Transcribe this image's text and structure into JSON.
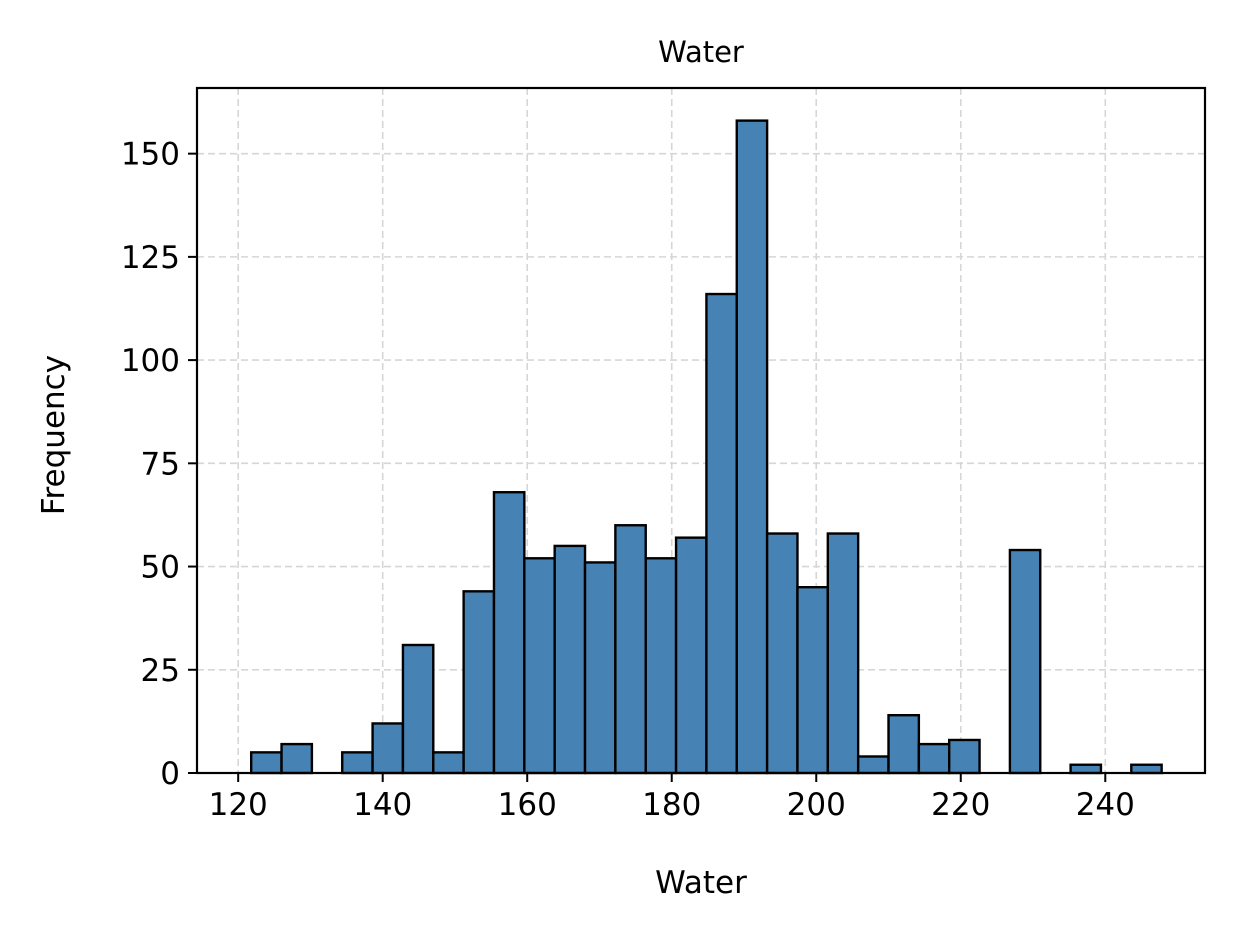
{
  "chart_data": {
    "type": "bar",
    "title": "Water",
    "xlabel": "Water",
    "ylabel": "Frequency",
    "xlim": [
      114.3,
      253.8
    ],
    "ylim": [
      0,
      165.9
    ],
    "xticks": [
      120,
      140,
      160,
      180,
      200,
      220,
      240
    ],
    "yticks": [
      0,
      25,
      50,
      75,
      100,
      125,
      150
    ],
    "grid": true,
    "bar_color": "#4682b4",
    "edge_color": "#000000",
    "bins": [
      {
        "x0": 121.8,
        "x1": 126.0,
        "count": 5
      },
      {
        "x0": 126.0,
        "x1": 130.2,
        "count": 7
      },
      {
        "x0": 130.2,
        "x1": 134.4,
        "count": 0
      },
      {
        "x0": 134.4,
        "x1": 138.6,
        "count": 5
      },
      {
        "x0": 138.6,
        "x1": 142.8,
        "count": 12
      },
      {
        "x0": 142.8,
        "x1": 147.0,
        "count": 31
      },
      {
        "x0": 147.0,
        "x1": 151.2,
        "count": 5
      },
      {
        "x0": 151.2,
        "x1": 155.4,
        "count": 44
      },
      {
        "x0": 155.4,
        "x1": 159.6,
        "count": 68
      },
      {
        "x0": 159.6,
        "x1": 163.8,
        "count": 52
      },
      {
        "x0": 163.8,
        "x1": 168.0,
        "count": 55
      },
      {
        "x0": 168.0,
        "x1": 172.2,
        "count": 51
      },
      {
        "x0": 172.2,
        "x1": 176.4,
        "count": 60
      },
      {
        "x0": 176.4,
        "x1": 180.6,
        "count": 52
      },
      {
        "x0": 180.6,
        "x1": 184.8,
        "count": 57
      },
      {
        "x0": 184.8,
        "x1": 189.0,
        "count": 116
      },
      {
        "x0": 189.0,
        "x1": 193.2,
        "count": 158
      },
      {
        "x0": 193.2,
        "x1": 197.4,
        "count": 58
      },
      {
        "x0": 197.4,
        "x1": 201.6,
        "count": 45
      },
      {
        "x0": 201.6,
        "x1": 205.8,
        "count": 58
      },
      {
        "x0": 205.8,
        "x1": 210.0,
        "count": 4
      },
      {
        "x0": 210.0,
        "x1": 214.2,
        "count": 14
      },
      {
        "x0": 214.2,
        "x1": 218.4,
        "count": 7
      },
      {
        "x0": 218.4,
        "x1": 222.6,
        "count": 8
      },
      {
        "x0": 222.6,
        "x1": 226.8,
        "count": 0
      },
      {
        "x0": 226.8,
        "x1": 231.0,
        "count": 54
      },
      {
        "x0": 231.0,
        "x1": 235.2,
        "count": 0
      },
      {
        "x0": 235.2,
        "x1": 239.4,
        "count": 2
      },
      {
        "x0": 239.4,
        "x1": 243.6,
        "count": 0
      },
      {
        "x0": 243.6,
        "x1": 247.8,
        "count": 2
      }
    ]
  }
}
